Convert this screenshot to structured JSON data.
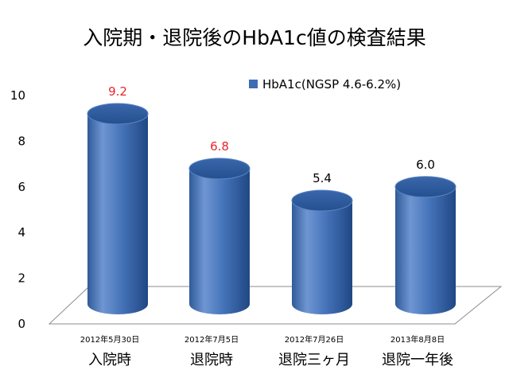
{
  "chart_data": {
    "type": "bar",
    "title": "入院期・退院後のHbA1c値の検査結果",
    "categories": [
      "入院時",
      "退院時",
      "退院三ヶ月",
      "退院一年後"
    ],
    "dates": [
      "2012年5月30日",
      "2012年7月5日",
      "2012年7月26日",
      "2013年8月8日"
    ],
    "series": [
      {
        "name": "HbA1c(NGSP 4.6-6.2%)",
        "values": [
          9.2,
          6.8,
          5.4,
          6.0
        ],
        "value_labels": [
          "9.2",
          "6.8",
          "5.4",
          "6.0"
        ],
        "label_colors": [
          "#e8252a",
          "#e8252a",
          "#000000",
          "#000000"
        ]
      }
    ],
    "yticks": [
      "0",
      "2",
      "4",
      "6",
      "8",
      "10"
    ],
    "ylim": [
      0,
      10
    ],
    "legend_position": "top-right",
    "grid": false,
    "bar_style": "3d-cylinder",
    "colors": {
      "bar_light": "#6c93cf",
      "bar_main": "#3f6db3",
      "bar_dark": "#1f4a8a",
      "bar_top": "#2d5a9e",
      "floor_edge": "#8c8c8c"
    }
  }
}
